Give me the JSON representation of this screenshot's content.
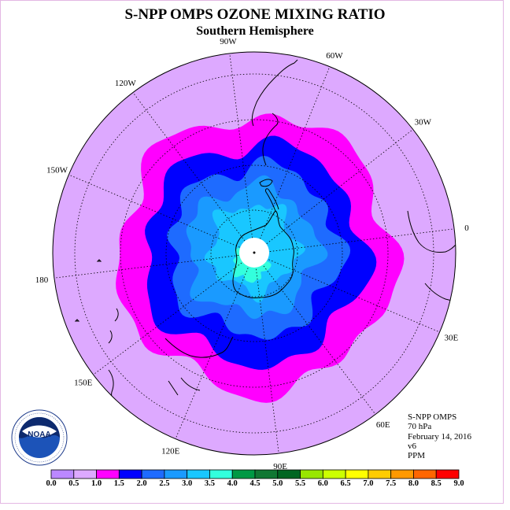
{
  "header": {
    "title": "S-NPP OMPS OZONE MIXING RATIO",
    "subtitle": "Southern Hemisphere"
  },
  "map": {
    "projection": "south polar stereographic",
    "longitude_labels": [
      "90W",
      "60W",
      "30W",
      "0",
      "30E",
      "60E",
      "90E",
      "120E",
      "150E",
      "180",
      "150W",
      "120W"
    ],
    "colors": {
      "outside_level": "#dda9ff",
      "band_1_0_to_1_5": "#ff00ff",
      "band_1_5_to_2_0": "#0000ff",
      "band_2_0_to_2_5": "#1e6bff",
      "band_2_5_to_3_0": "#1a9aff",
      "band_3_0_to_3_5": "#19c7ff",
      "band_3_5_to_4_0": "#33ffdd",
      "pole_missing": "#ffffff"
    }
  },
  "info": {
    "instrument": "S-NPP OMPS",
    "level": "70 hPa",
    "date": "February 14, 2016",
    "version": "v6",
    "units": "PPM"
  },
  "logo": {
    "name": "NOAA",
    "ring_text": "NATIONAL OCEANIC AND ATMOSPHERIC ADMINISTRATION · U.S. DEPARTMENT OF COMMERCE"
  },
  "colorbar": {
    "tick_labels": [
      "0.0",
      "0.5",
      "1.0",
      "1.5",
      "2.0",
      "2.5",
      "3.0",
      "3.5",
      "4.0",
      "4.5",
      "5.0",
      "5.5",
      "6.0",
      "6.5",
      "7.0",
      "7.5",
      "8.0",
      "8.5",
      "9.0"
    ],
    "colors": [
      "#bb88ff",
      "#dda9ff",
      "#ff00ff",
      "#0000ff",
      "#1e6bff",
      "#1a9aff",
      "#19c7ff",
      "#33ffdd",
      "#009944",
      "#117733",
      "#006622",
      "#99e600",
      "#ccff00",
      "#ffff00",
      "#ffcc00",
      "#ff9900",
      "#ff6600",
      "#ff0000",
      "#885533"
    ]
  }
}
